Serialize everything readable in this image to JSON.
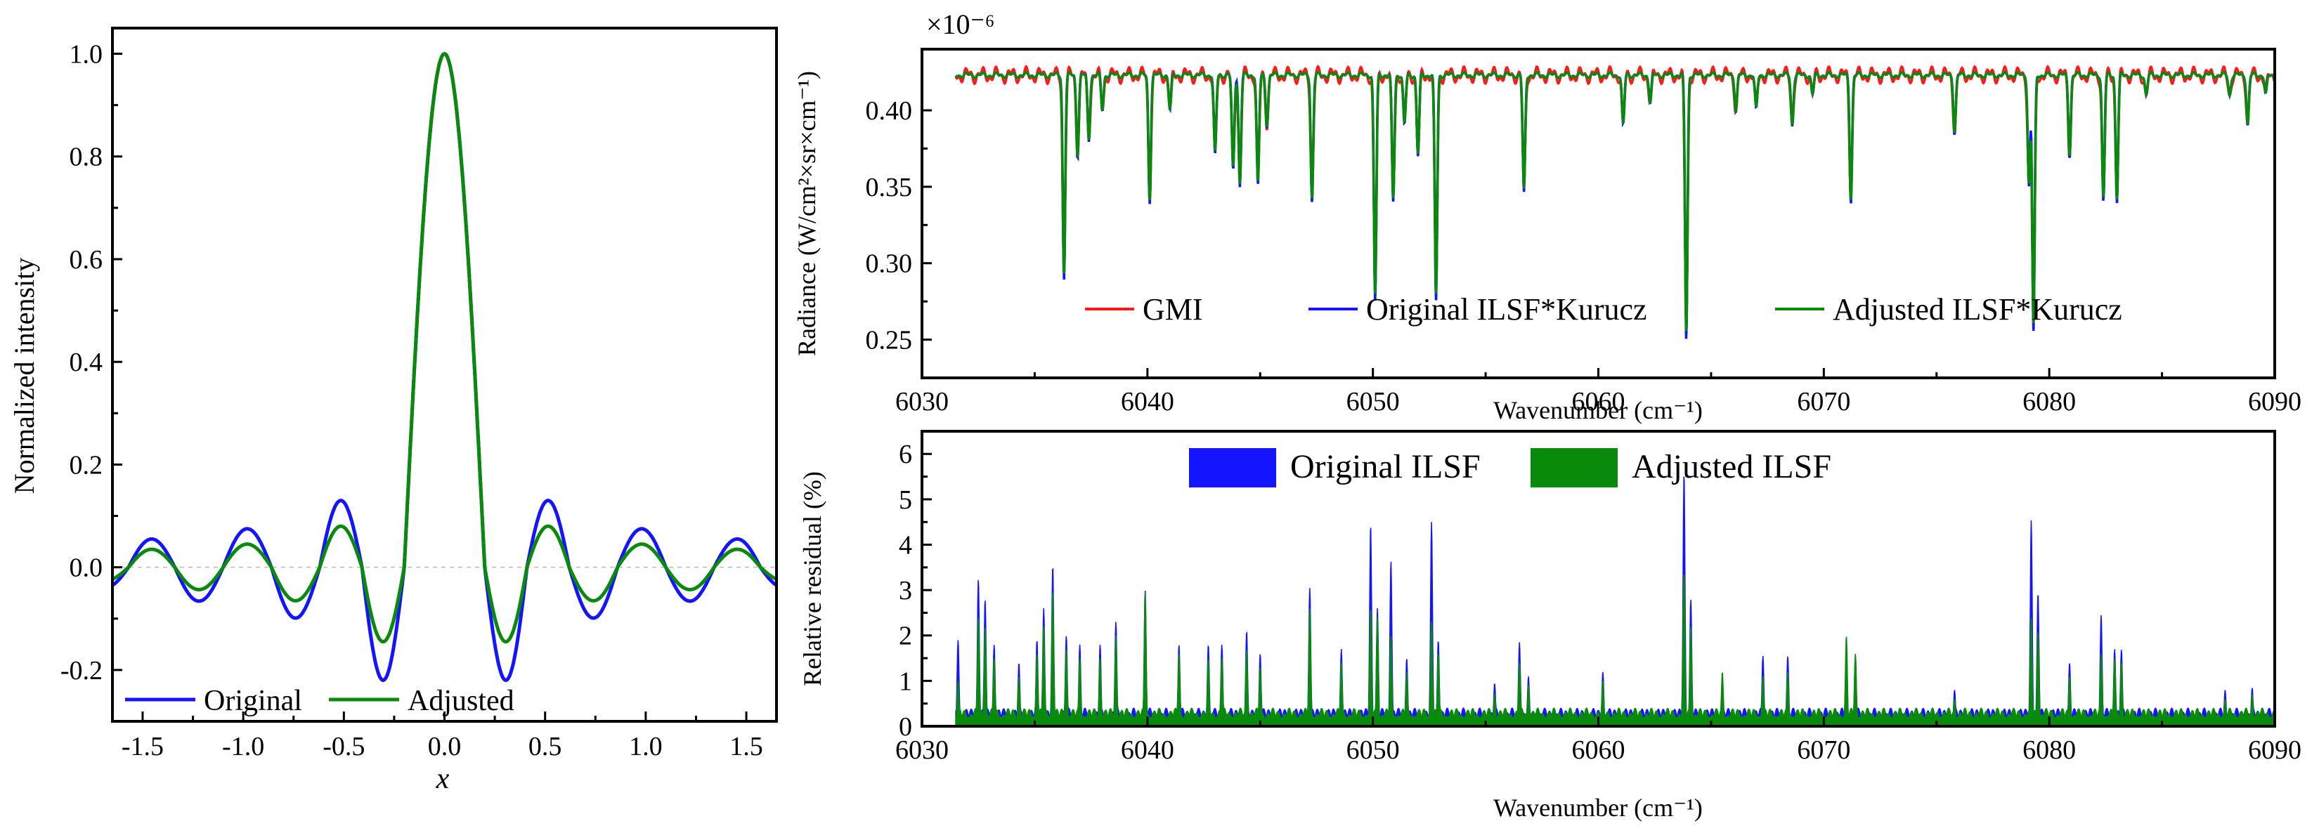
{
  "colors": {
    "blue": "#1414ff",
    "green": "#0a8a0a",
    "red": "#ff1a1a",
    "axis": "#000000"
  },
  "chart_data": [
    {
      "id": "ilsf",
      "type": "line",
      "xlabel": "x",
      "ylabel": "Normalized intensity",
      "xlim": [
        -1.65,
        1.65
      ],
      "ylim": [
        -0.3,
        1.05
      ],
      "xticks": [
        "-1.5",
        "-1.0",
        "-0.5",
        "0.0",
        "0.5",
        "1.0",
        "1.5"
      ],
      "xtick_values": [
        -1.5,
        -1.0,
        -0.5,
        0.0,
        0.5,
        1.0,
        1.5
      ],
      "yticks": [
        "-0.2",
        "0.0",
        "0.2",
        "0.4",
        "0.6",
        "0.8",
        "1.0"
      ],
      "ytick_values": [
        -0.2,
        0.0,
        0.2,
        0.4,
        0.6,
        0.8,
        1.0
      ],
      "legend_position": "bottom-left",
      "series": [
        {
          "name": "Original",
          "color": "#1414ff",
          "peak": 1.0,
          "minimum": -0.22,
          "side_lobes": [
            0.13,
            0.075,
            0.055
          ]
        },
        {
          "name": "Adjusted",
          "color": "#0a8a0a",
          "peak": 1.0,
          "minimum": -0.145,
          "side_lobes": [
            0.08,
            0.045,
            0.035
          ]
        }
      ]
    },
    {
      "id": "radiance",
      "type": "line",
      "xlabel": "Wavenumber (cm⁻¹)",
      "ylabel": "Radiance (W/cm²×sr×cm⁻¹)",
      "scale_label": "×10⁻⁶",
      "xlim": [
        6030,
        6090
      ],
      "ylim": [
        0.225,
        0.44
      ],
      "xticks": [
        "6030",
        "6040",
        "6050",
        "6060",
        "6070",
        "6080",
        "6090"
      ],
      "xtick_values": [
        6030,
        6040,
        6050,
        6060,
        6070,
        6080,
        6090
      ],
      "yticks": [
        "0.25",
        "0.30",
        "0.35",
        "0.40"
      ],
      "ytick_values": [
        0.25,
        0.3,
        0.35,
        0.4
      ],
      "baseline": 0.423,
      "data_range": [
        6031.5,
        6090
      ],
      "legend_position": "bottom-center",
      "series": [
        {
          "name": "GMI",
          "color": "#ff1a1a"
        },
        {
          "name": "Original ILSF*Kurucz",
          "color": "#1414ff"
        },
        {
          "name": "Adjusted ILSF*Kurucz",
          "color": "#0a8a0a"
        }
      ],
      "absorption_lines": [
        [
          6036.3,
          0.29
        ],
        [
          6036.9,
          0.37
        ],
        [
          6037.4,
          0.38
        ],
        [
          6038.0,
          0.4
        ],
        [
          6040.1,
          0.34
        ],
        [
          6041.0,
          0.4
        ],
        [
          6043.0,
          0.37
        ],
        [
          6043.8,
          0.36
        ],
        [
          6044.1,
          0.35
        ],
        [
          6044.9,
          0.35
        ],
        [
          6045.3,
          0.39
        ],
        [
          6047.3,
          0.34
        ],
        [
          6050.1,
          0.275
        ],
        [
          6050.9,
          0.34
        ],
        [
          6051.4,
          0.39
        ],
        [
          6052.0,
          0.37
        ],
        [
          6052.8,
          0.275
        ],
        [
          6056.7,
          0.345
        ],
        [
          6061.1,
          0.39
        ],
        [
          6062.3,
          0.405
        ],
        [
          6063.9,
          0.25
        ],
        [
          6066.1,
          0.4
        ],
        [
          6067.0,
          0.4
        ],
        [
          6068.6,
          0.39
        ],
        [
          6069.5,
          0.41
        ],
        [
          6071.2,
          0.34
        ],
        [
          6075.8,
          0.385
        ],
        [
          6079.1,
          0.35
        ],
        [
          6079.3,
          0.255
        ],
        [
          6080.9,
          0.37
        ],
        [
          6082.4,
          0.34
        ],
        [
          6083.0,
          0.34
        ],
        [
          6084.3,
          0.41
        ],
        [
          6088.0,
          0.41
        ],
        [
          6088.8,
          0.39
        ],
        [
          6089.6,
          0.41
        ]
      ]
    },
    {
      "id": "residual",
      "type": "area",
      "xlabel": "Wavenumber (cm⁻¹)",
      "ylabel": "Relative residual (%)",
      "xlim": [
        6030,
        6090
      ],
      "ylim": [
        0,
        6.5
      ],
      "xticks": [
        "6030",
        "6040",
        "6050",
        "6060",
        "6070",
        "6080",
        "6090"
      ],
      "xtick_values": [
        6030,
        6040,
        6050,
        6060,
        6070,
        6080,
        6090
      ],
      "yticks": [
        "0",
        "1",
        "2",
        "3",
        "4",
        "5",
        "6"
      ],
      "ytick_values": [
        0,
        1,
        2,
        3,
        4,
        5,
        6
      ],
      "data_range": [
        6031.5,
        6090
      ],
      "legend_position": "top-center",
      "series": [
        {
          "name": "Original ILSF",
          "color": "#1414ff"
        },
        {
          "name": "Adjusted ILSF",
          "color": "#0a8a0a"
        }
      ],
      "peaks_original": [
        [
          6031.6,
          1.9
        ],
        [
          6032.5,
          3.25
        ],
        [
          6032.8,
          2.8
        ],
        [
          6033.2,
          1.8
        ],
        [
          6034.3,
          1.4
        ],
        [
          6035.1,
          1.9
        ],
        [
          6035.4,
          2.6
        ],
        [
          6035.8,
          3.55
        ],
        [
          6036.4,
          2.0
        ],
        [
          6037.0,
          1.8
        ],
        [
          6037.9,
          1.8
        ],
        [
          6038.6,
          2.3
        ],
        [
          6039.9,
          3.0
        ],
        [
          6041.4,
          1.8
        ],
        [
          6042.7,
          1.8
        ],
        [
          6043.3,
          1.8
        ],
        [
          6044.4,
          2.1
        ],
        [
          6045.0,
          1.6
        ],
        [
          6047.2,
          3.05
        ],
        [
          6048.6,
          1.7
        ],
        [
          6049.9,
          4.45
        ],
        [
          6050.2,
          2.6
        ],
        [
          6050.8,
          3.65
        ],
        [
          6051.5,
          1.5
        ],
        [
          6052.6,
          4.5
        ],
        [
          6052.9,
          1.9
        ],
        [
          6055.4,
          0.95
        ],
        [
          6056.5,
          1.85
        ],
        [
          6056.9,
          1.1
        ],
        [
          6060.2,
          1.2
        ],
        [
          6063.8,
          5.6
        ],
        [
          6064.1,
          2.8
        ],
        [
          6065.5,
          0.9
        ],
        [
          6067.3,
          1.55
        ],
        [
          6068.4,
          1.55
        ],
        [
          6071.0,
          1.7
        ],
        [
          6071.4,
          1.5
        ],
        [
          6075.8,
          0.8
        ],
        [
          6079.2,
          4.55
        ],
        [
          6079.5,
          2.95
        ],
        [
          6080.9,
          1.4
        ],
        [
          6082.3,
          2.45
        ],
        [
          6082.9,
          1.7
        ],
        [
          6083.2,
          1.7
        ],
        [
          6087.8,
          0.8
        ],
        [
          6089.0,
          0.85
        ]
      ],
      "peaks_adjusted": [
        [
          6031.6,
          1.0
        ],
        [
          6032.5,
          2.4
        ],
        [
          6032.8,
          2.2
        ],
        [
          6033.2,
          1.5
        ],
        [
          6034.3,
          1.1
        ],
        [
          6035.1,
          1.6
        ],
        [
          6035.4,
          2.2
        ],
        [
          6035.8,
          3.0
        ],
        [
          6036.4,
          1.7
        ],
        [
          6037.0,
          1.5
        ],
        [
          6037.9,
          1.5
        ],
        [
          6038.6,
          2.0
        ],
        [
          6039.9,
          2.95
        ],
        [
          6041.4,
          1.6
        ],
        [
          6042.7,
          1.5
        ],
        [
          6043.3,
          1.5
        ],
        [
          6044.4,
          1.7
        ],
        [
          6045.0,
          1.3
        ],
        [
          6047.2,
          2.6
        ],
        [
          6048.6,
          1.4
        ],
        [
          6049.9,
          2.6
        ],
        [
          6050.2,
          2.4
        ],
        [
          6050.8,
          2.0
        ],
        [
          6051.5,
          1.2
        ],
        [
          6052.6,
          2.3
        ],
        [
          6052.9,
          1.6
        ],
        [
          6055.4,
          0.7
        ],
        [
          6056.5,
          1.4
        ],
        [
          6056.9,
          0.9
        ],
        [
          6060.2,
          1.0
        ],
        [
          6063.8,
          3.4
        ],
        [
          6064.1,
          2.2
        ],
        [
          6065.5,
          1.2
        ],
        [
          6067.3,
          1.1
        ],
        [
          6068.4,
          1.2
        ],
        [
          6071.0,
          2.0
        ],
        [
          6071.4,
          1.6
        ],
        [
          6075.8,
          0.6
        ],
        [
          6079.2,
          2.4
        ],
        [
          6079.5,
          2.1
        ],
        [
          6080.9,
          1.1
        ],
        [
          6082.3,
          1.6
        ],
        [
          6082.9,
          1.5
        ],
        [
          6083.2,
          1.4
        ],
        [
          6087.8,
          0.6
        ],
        [
          6089.0,
          0.7
        ]
      ]
    }
  ]
}
